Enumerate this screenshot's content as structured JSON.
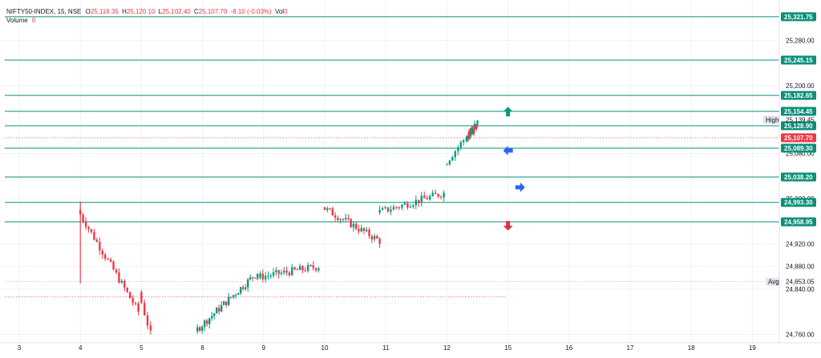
{
  "legend": {
    "symbol": "NIFTY50-INDEX, 15, NSE",
    "o_label": "O",
    "o_value": "25,116.35",
    "h_label": "H",
    "h_value": "25,120.10",
    "l_label": "L",
    "l_value": "25,102.40",
    "c_label": "C",
    "c_value": "25,107.70",
    "change": "-8.10 (-0.03%)",
    "vol_label": "Vol",
    "vol_value": "0",
    "volume_label": "Volume",
    "volume_value": "0"
  },
  "colors": {
    "up": "#089981",
    "down": "#f23645",
    "level": "#0b8f7a",
    "arrow_up": "#089981",
    "arrow_down": "#e0333f",
    "arrow_blue": "#2962ff"
  },
  "chart_data": {
    "type": "candlestick",
    "x_ticks": [
      "3",
      "4",
      "5",
      "8",
      "9",
      "10",
      "11",
      "12",
      "15",
      "16",
      "17",
      "18",
      "19"
    ],
    "y_ticks": [
      "25,280.00",
      "25,200.00",
      "25,080.00",
      "25,000.00",
      "24,920.00",
      "24,880.00",
      "24,840.00",
      "24,760.00"
    ],
    "ylim": [
      24745,
      25340
    ],
    "levels": [
      {
        "value": 25321.75,
        "label": "25,321.75"
      },
      {
        "value": 25245.15,
        "label": "25,245.15"
      },
      {
        "value": 25182.65,
        "label": "25,182.65"
      },
      {
        "value": 25154.45,
        "label": "25,154.45"
      },
      {
        "value": 25128.9,
        "label": "25,128.90"
      },
      {
        "value": 25089.3,
        "label": "25,089.30"
      },
      {
        "value": 25038.2,
        "label": "25,038.20"
      },
      {
        "value": 24993.3,
        "label": "24,993.30"
      },
      {
        "value": 24958.95,
        "label": "24,958.95"
      }
    ],
    "current_price": {
      "value": 25107.7,
      "label": "25,107.70"
    },
    "high": {
      "value": 25139.45,
      "label": "25,139.45",
      "tag": "High"
    },
    "avg": {
      "value": 24853.05,
      "label": "24,853.05",
      "tag": "Avg"
    },
    "arrows": [
      {
        "dir": "up",
        "day": 15,
        "value": 25154
      },
      {
        "dir": "left",
        "day": 15,
        "value": 25085
      },
      {
        "dir": "right",
        "day": 15.2,
        "value": 25020
      },
      {
        "dir": "down",
        "day": 15,
        "value": 24952
      }
    ],
    "segments": [
      {
        "x0": 4.0,
        "x1": 4.95,
        "start": 24980,
        "end": 24800,
        "n": 22
      },
      {
        "x0": 5.0,
        "x1": 5.15,
        "start": 24835,
        "end": 24760,
        "n": 4
      },
      {
        "x0": 7.75,
        "x1": 8.9,
        "start": 24765,
        "end": 24870,
        "n": 26
      },
      {
        "x0": 8.9,
        "x1": 9.9,
        "start": 24860,
        "end": 24880,
        "n": 24
      },
      {
        "x0": 10.0,
        "x1": 10.9,
        "start": 24985,
        "end": 24925,
        "n": 22
      },
      {
        "x0": 10.9,
        "x1": 11.95,
        "start": 24975,
        "end": 25010,
        "n": 24
      },
      {
        "x0": 12.0,
        "x1": 12.5,
        "start": 25060,
        "end": 25135,
        "n": 12
      },
      {
        "x0": 12.5,
        "x1": 13.0,
        "start": 25130,
        "end": 25108,
        "n": 12
      }
    ]
  }
}
